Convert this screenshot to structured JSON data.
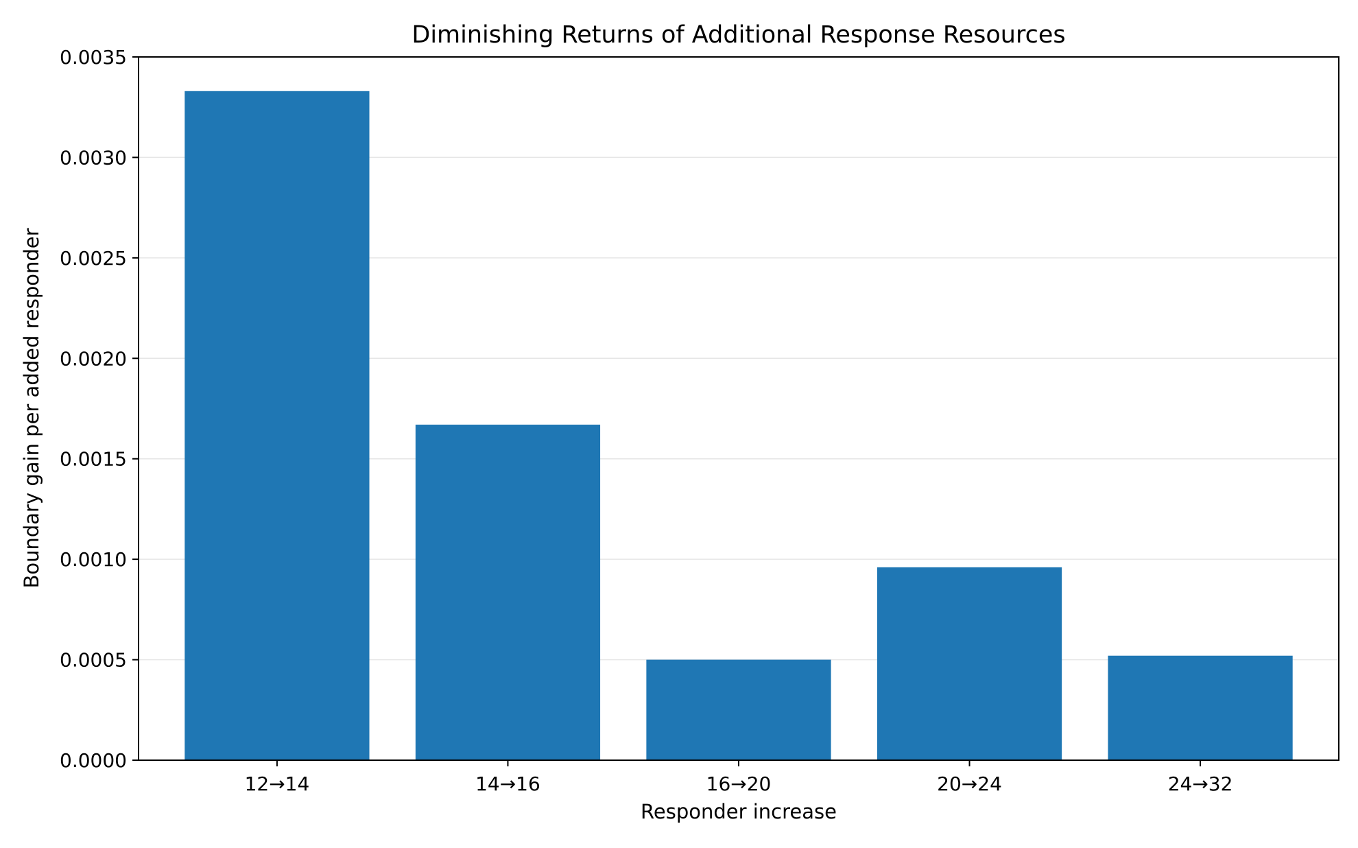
{
  "chart_data": {
    "type": "bar",
    "title": "Diminishing Returns of Additional Response Resources",
    "xlabel": "Responder increase",
    "ylabel": "Boundary gain per added responder",
    "categories": [
      "12→14",
      "14→16",
      "16→20",
      "20→24",
      "24→32"
    ],
    "values": [
      0.00333,
      0.00167,
      0.0005,
      0.00096,
      0.00052
    ],
    "ylim": [
      0,
      0.0035
    ],
    "yticks": [
      "0.0000",
      "0.0005",
      "0.0010",
      "0.0015",
      "0.0020",
      "0.0025",
      "0.0030",
      "0.0035"
    ],
    "ytick_values": [
      0,
      0.0005,
      0.001,
      0.0015,
      0.002,
      0.0025,
      0.003,
      0.0035
    ],
    "grid": "horizontal",
    "legend": "none",
    "colors": {
      "bar": "#1f77b4",
      "grid": "#e6e6e6",
      "axis": "#000000"
    }
  }
}
